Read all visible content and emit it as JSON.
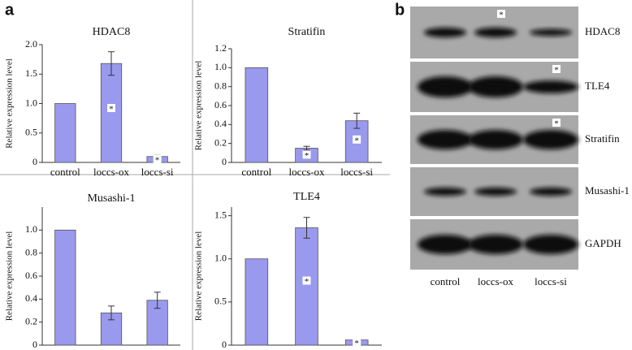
{
  "chart_data": [
    {
      "type": "bar",
      "title": "HDAC8",
      "y_label": "Relative expression level",
      "categories": [
        "control",
        "loccs-ox",
        "loccs-si"
      ],
      "values": [
        1.0,
        1.68,
        0.1
      ],
      "errors": [
        0,
        0.2,
        0.02
      ],
      "significance": [
        null,
        "*",
        "*"
      ],
      "color": "#9999ee",
      "ylim": [
        0,
        2
      ],
      "yticks": [
        0,
        0.5,
        {
          "value": 1,
          "label": "1.0"
        },
        1.5,
        {
          "value": 2,
          "label": "2.0"
        }
      ]
    },
    {
      "type": "bar",
      "title": "Stratifin",
      "y_label": "Relative expression level",
      "categories": [
        "control",
        "loccs-ox",
        "loccs-si"
      ],
      "values": [
        1.0,
        0.15,
        0.44
      ],
      "errors": [
        0,
        0.02,
        0.08
      ],
      "significance": [
        null,
        "*",
        "*"
      ],
      "color": "#9999ee",
      "ylim": [
        0,
        1.2
      ],
      "yticks": [
        0,
        0.2,
        0.4,
        0.6,
        0.8,
        {
          "value": 1,
          "label": "1.0"
        },
        1.2
      ]
    },
    {
      "type": "bar",
      "title": "Musashi-1",
      "y_label": "Relative expression level",
      "categories": [
        "control",
        "loccs-ox",
        "loccs-si"
      ],
      "values": [
        1.0,
        0.28,
        0.39
      ],
      "errors": [
        0,
        0.06,
        0.07
      ],
      "color": "#9999ee",
      "ylim": [
        0,
        1.2
      ],
      "yticks": [
        0,
        0.2,
        0.4,
        0.6,
        0.8,
        {
          "value": 1,
          "label": "1.0"
        }
      ]
    },
    {
      "type": "bar",
      "title": "TLE4",
      "y_label": "Relative expression level",
      "categories": [
        "control",
        "loccs-ox",
        "loccs-si"
      ],
      "values": [
        1.0,
        1.36,
        0.06
      ],
      "errors": [
        0,
        0.12,
        0.01
      ],
      "significance": [
        null,
        "*",
        "*"
      ],
      "color": "#9999ee",
      "ylim": [
        0,
        1.6
      ],
      "yticks": [
        0,
        0.5,
        {
          "value": 1,
          "label": "1.0"
        },
        1.5
      ]
    }
  ],
  "figure": {
    "panel_a": "a",
    "panel_b": "b",
    "blot": {
      "lanes": [
        "control",
        "loccs-ox",
        "loccs-si"
      ],
      "rows": [
        {
          "label": "HDAC8",
          "significance": [
            null,
            "*",
            null
          ]
        },
        {
          "label": "TLE4",
          "significance": [
            null,
            null,
            "*"
          ]
        },
        {
          "label": "Stratifin",
          "significance": [
            null,
            null,
            "*"
          ]
        },
        {
          "label": "Musashi-1"
        },
        {
          "label": "GAPDH"
        }
      ]
    }
  }
}
